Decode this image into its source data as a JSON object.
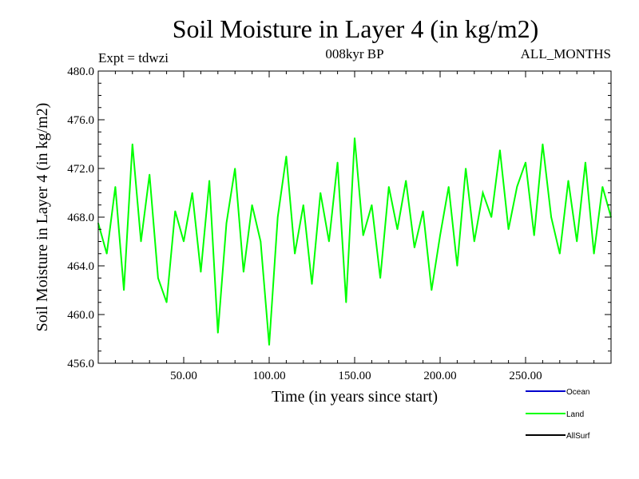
{
  "chart_data": {
    "type": "line",
    "title": "Soil Moisture in Layer 4 (in kg/m2)",
    "subtitle_left": "Expt = tdwzi",
    "subtitle_center": "008kyr BP",
    "subtitle_right": "ALL_MONTHS",
    "xlabel": "Time (in years since start)",
    "ylabel": "Soil Moisture in Layer 4 (in kg/m2)",
    "xlim": [
      0,
      300
    ],
    "ylim": [
      456.0,
      480.0
    ],
    "x_tick_labels": [
      "50.00",
      "100.00",
      "150.00",
      "200.00",
      "250.00"
    ],
    "x_tick_values": [
      50,
      100,
      150,
      200,
      250
    ],
    "y_tick_labels": [
      "456.0",
      "460.0",
      "464.0",
      "468.0",
      "472.0",
      "476.0",
      "480.0"
    ],
    "y_tick_values": [
      456,
      460,
      464,
      468,
      472,
      476,
      480
    ],
    "grid": false,
    "legend_position": "bottom-right",
    "legend": [
      {
        "name": "Ocean",
        "color": "#0000cc"
      },
      {
        "name": "Land",
        "color": "#00ff00"
      },
      {
        "name": "AllSurf",
        "color": "#000000"
      }
    ],
    "series": [
      {
        "name": "Land",
        "color": "#00ff00",
        "x": [
          0,
          5,
          10,
          15,
          20,
          25,
          30,
          35,
          40,
          45,
          50,
          55,
          60,
          65,
          70,
          75,
          80,
          85,
          90,
          95,
          100,
          105,
          110,
          115,
          120,
          125,
          130,
          135,
          140,
          145,
          150,
          155,
          160,
          165,
          170,
          175,
          180,
          185,
          190,
          195,
          200,
          205,
          210,
          215,
          220,
          225,
          230,
          235,
          240,
          245,
          250,
          255,
          260,
          265,
          270,
          275,
          280,
          285,
          290,
          295,
          300
        ],
        "y": [
          467.5,
          465.0,
          470.5,
          462.0,
          474.0,
          466.0,
          471.5,
          463.0,
          461.0,
          468.5,
          466.0,
          470.0,
          463.5,
          471.0,
          458.5,
          467.5,
          472.0,
          463.5,
          469.0,
          466.0,
          457.5,
          468.0,
          473.0,
          465.0,
          469.0,
          462.5,
          470.0,
          466.0,
          472.5,
          461.0,
          474.5,
          466.5,
          469.0,
          463.0,
          470.5,
          467.0,
          471.0,
          465.5,
          468.5,
          462.0,
          466.5,
          470.5,
          464.0,
          472.0,
          466.0,
          470.0,
          468.0,
          473.5,
          467.0,
          470.5,
          472.5,
          466.5,
          474.0,
          468.0,
          465.0,
          471.0,
          466.0,
          472.5,
          465.0,
          470.5,
          468.0
        ]
      }
    ]
  }
}
